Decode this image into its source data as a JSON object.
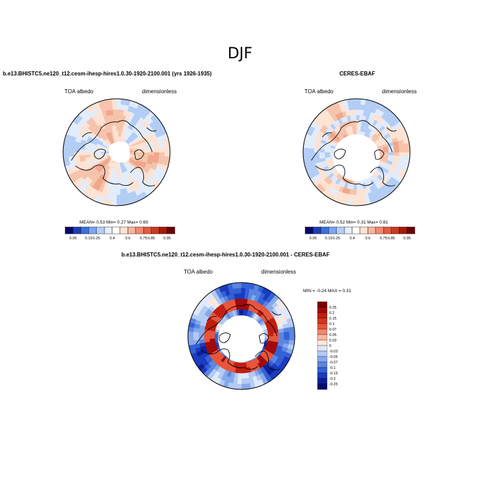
{
  "figure": {
    "title": "DJF",
    "panels": [
      {
        "title": "b.e13.BHISTC5.ne120_t12.cesm-ihesp-hires1.0.30-1920-2100.001 (yrs 1926-1935)",
        "left_label": "TOA albedo",
        "right_label": "dimensionless",
        "stats": "MEAN=  0.53  Min=  0.27  Max=  0.69"
      },
      {
        "title": "CERES-EBAF",
        "left_label": "TOA albedo",
        "right_label": "dimensionless",
        "stats": "MEAN=  0.52  Min=  0.31  Max=  0.81"
      },
      {
        "title": "b.e13.BHISTC5.ne120_t12.cesm-ihesp-hires1.0.30-1920-2100.001 - CERES-EBAF",
        "left_label": "TOA albedo",
        "right_label": "dimensionless",
        "stats": "MIN = -0.24 MAX =  0.31"
      }
    ]
  },
  "chart_data": [
    {
      "type": "heatmap",
      "projection": "north-polar-stereographic",
      "title": "b.e13.BHISTC5.ne120_t12.cesm-ihesp-hires1.0.30-1920-2100.001 (yrs 1926-1935)",
      "variable": "TOA albedo",
      "units": "dimensionless",
      "mean": 0.53,
      "min": 0.27,
      "max": 0.69,
      "colorbar": {
        "orientation": "horizontal",
        "ticks": [
          "0.05",
          "0.15",
          "0.25",
          "0.4",
          "0.6",
          "0.75",
          "0.85",
          "0.95"
        ],
        "colors": [
          "#08086b",
          "#1f3fb0",
          "#3a6fe0",
          "#7ea4ee",
          "#b3cdf5",
          "#e2ecfb",
          "#ffffff",
          "#fde3d3",
          "#f6b6a0",
          "#ef8a70",
          "#e25c3f",
          "#c73b1d",
          "#a51c0c",
          "#6e0000"
        ]
      }
    },
    {
      "type": "heatmap",
      "projection": "north-polar-stereographic",
      "title": "CERES-EBAF",
      "variable": "TOA albedo",
      "units": "dimensionless",
      "mean": 0.52,
      "min": 0.31,
      "max": 0.81,
      "colorbar": {
        "orientation": "horizontal",
        "ticks": [
          "0.05",
          "0.15",
          "0.25",
          "0.4",
          "0.6",
          "0.75",
          "0.85",
          "0.95"
        ],
        "colors": [
          "#08086b",
          "#1f3fb0",
          "#3a6fe0",
          "#7ea4ee",
          "#b3cdf5",
          "#e2ecfb",
          "#ffffff",
          "#fde3d3",
          "#f6b6a0",
          "#ef8a70",
          "#e25c3f",
          "#c73b1d",
          "#a51c0c",
          "#6e0000"
        ]
      }
    },
    {
      "type": "heatmap",
      "projection": "north-polar-stereographic",
      "title": "b.e13.BHISTC5.ne120_t12.cesm-ihesp-hires1.0.30-1920-2100.001 - CERES-EBAF",
      "variable": "TOA albedo",
      "units": "dimensionless",
      "min": -0.24,
      "max": 0.31,
      "colorbar": {
        "orientation": "vertical",
        "ticks": [
          "0.25",
          "0.2",
          "0.15",
          "0.1",
          "0.07",
          "0.05",
          "0.03",
          "0",
          "-0.03",
          "-0.05",
          "-0.07",
          "-0.1",
          "-0.15",
          "-0.2",
          "-0.25"
        ],
        "colors": [
          "#7a0000",
          "#a00a0a",
          "#c01e10",
          "#d8361c",
          "#e8553a",
          "#f2876a",
          "#f8b9a2",
          "#fde6da",
          "#dfe9fb",
          "#b3cbf4",
          "#86a9ec",
          "#5a86e2",
          "#3361d6",
          "#1a3bbf",
          "#0c1f98",
          "#060a6e"
        ]
      }
    }
  ]
}
